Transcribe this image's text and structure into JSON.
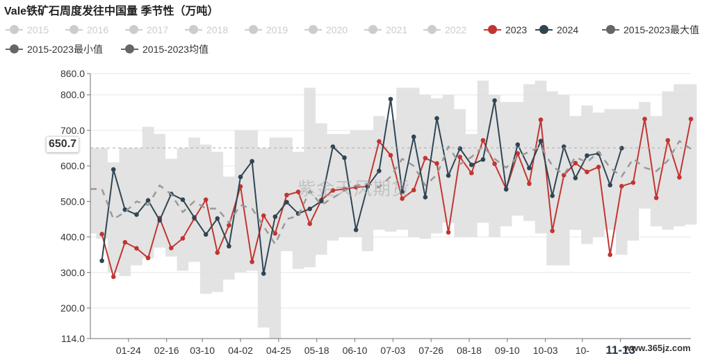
{
  "title": "Vale铁矿石周度发往中国量 季节性（万吨）",
  "legend": [
    {
      "label": "2015",
      "color": "#cccccc",
      "active": false
    },
    {
      "label": "2016",
      "color": "#cccccc",
      "active": false
    },
    {
      "label": "2017",
      "color": "#cccccc",
      "active": false
    },
    {
      "label": "2018",
      "color": "#cccccc",
      "active": false
    },
    {
      "label": "2019",
      "color": "#cccccc",
      "active": false
    },
    {
      "label": "2020",
      "color": "#cccccc",
      "active": false
    },
    {
      "label": "2021",
      "color": "#cccccc",
      "active": false
    },
    {
      "label": "2022",
      "color": "#cccccc",
      "active": false
    },
    {
      "label": "2023",
      "color": "#c23531",
      "active": true
    },
    {
      "label": "2024",
      "color": "#2f4554",
      "active": true
    },
    {
      "label": "2015-2023最大值",
      "color": "#666666",
      "active": true
    },
    {
      "label": "2015-2023最小值",
      "color": "#666666",
      "active": true
    },
    {
      "label": "2015-2023均值",
      "color": "#666666",
      "active": true
    }
  ],
  "pointer_value": "650.7",
  "watermark": "紫金天风期货",
  "site_watermark": "www.365jz.com",
  "chart_data": {
    "type": "line",
    "title": "Vale铁矿石周度发往中国量 季节性（万吨）",
    "ylim": [
      114,
      860
    ],
    "y_ticks": [
      "114.0",
      "200.0",
      "300.0",
      "400.0",
      "500.0",
      "600.0",
      "700.0",
      "800.0",
      "860.0"
    ],
    "y_tick_values": [
      114,
      200,
      300,
      400,
      500,
      600,
      700,
      800,
      860
    ],
    "x_tick_labels": [
      "01-24",
      "02-16",
      "03-10",
      "04-02",
      "04-25",
      "05-18",
      "06-10",
      "07-03",
      "07-26",
      "08-18",
      "09-10",
      "10-03",
      "10-",
      "11-13"
    ],
    "x_tick_weeks": [
      3.3,
      6.6,
      9.7,
      13,
      16.3,
      19.6,
      22.9,
      26.2,
      29.5,
      32.8,
      36.1,
      39.4,
      42.6,
      45.9
    ],
    "x_range": [
      0,
      52
    ],
    "band_min": [
      410,
      395,
      300,
      290,
      320,
      340,
      370,
      345,
      305,
      330,
      240,
      245,
      280,
      300,
      305,
      145,
      114,
      360,
      310,
      315,
      350,
      390,
      400,
      400,
      360,
      420,
      415,
      420,
      400,
      395,
      410,
      440,
      400,
      400,
      440,
      400,
      430,
      460,
      445,
      410,
      320,
      320,
      420,
      380,
      400,
      420,
      350,
      390,
      480,
      430,
      420,
      430,
      435
    ],
    "band_max": [
      650,
      650,
      610,
      650,
      650,
      710,
      690,
      620,
      650,
      680,
      660,
      640,
      570,
      700,
      700,
      650,
      680,
      680,
      640,
      820,
      720,
      690,
      690,
      700,
      700,
      740,
      730,
      820,
      820,
      800,
      790,
      800,
      760,
      690,
      840,
      800,
      780,
      780,
      830,
      840,
      810,
      800,
      740,
      770,
      750,
      760,
      760,
      760,
      780,
      740,
      810,
      830,
      830
    ],
    "series": [
      {
        "name": "2023",
        "color": "#c23531",
        "values": [
          null,
          408,
          288,
          385,
          368,
          341,
          453,
          369,
          396,
          452,
          505,
          356,
          433,
          542,
          330,
          460,
          410,
          518,
          527,
          437,
          504,
          531,
          535,
          540,
          542,
          669,
          630,
          508,
          532,
          622,
          607,
          413,
          625,
          580,
          672,
          606,
          535,
          635,
          550,
          730,
          417,
          574,
          608,
          583,
          597,
          350,
          543,
          553,
          732,
          510,
          672,
          568,
          732
        ]
      },
      {
        "name": "2024",
        "color": "#2f4554",
        "values": [
          null,
          333,
          590,
          477,
          463,
          503,
          447,
          521,
          505,
          455,
          407,
          452,
          374,
          569,
          613,
          297,
          457,
          498,
          466,
          479,
          501,
          654,
          623,
          420,
          542,
          586,
          788,
          527,
          682,
          512,
          734,
          573,
          649,
          603,
          618,
          784,
          534,
          660,
          594,
          670,
          516,
          654,
          566,
          629,
          635,
          546,
          650
        ]
      },
      {
        "name": "2015-2023均值",
        "color": "#999999",
        "values": [
          535,
          535,
          450,
          470,
          500,
          490,
          545,
          520,
          470,
          500,
          480,
          480,
          440,
          490,
          480,
          430,
          380,
          450,
          460,
          530,
          490,
          510,
          530,
          545,
          550,
          540,
          570,
          620,
          600,
          545,
          575,
          655,
          605,
          625,
          655,
          620,
          595,
          625,
          640,
          655,
          600,
          575,
          625,
          610,
          640,
          595,
          570,
          620,
          595,
          585,
          615,
          670,
          648
        ]
      }
    ]
  }
}
